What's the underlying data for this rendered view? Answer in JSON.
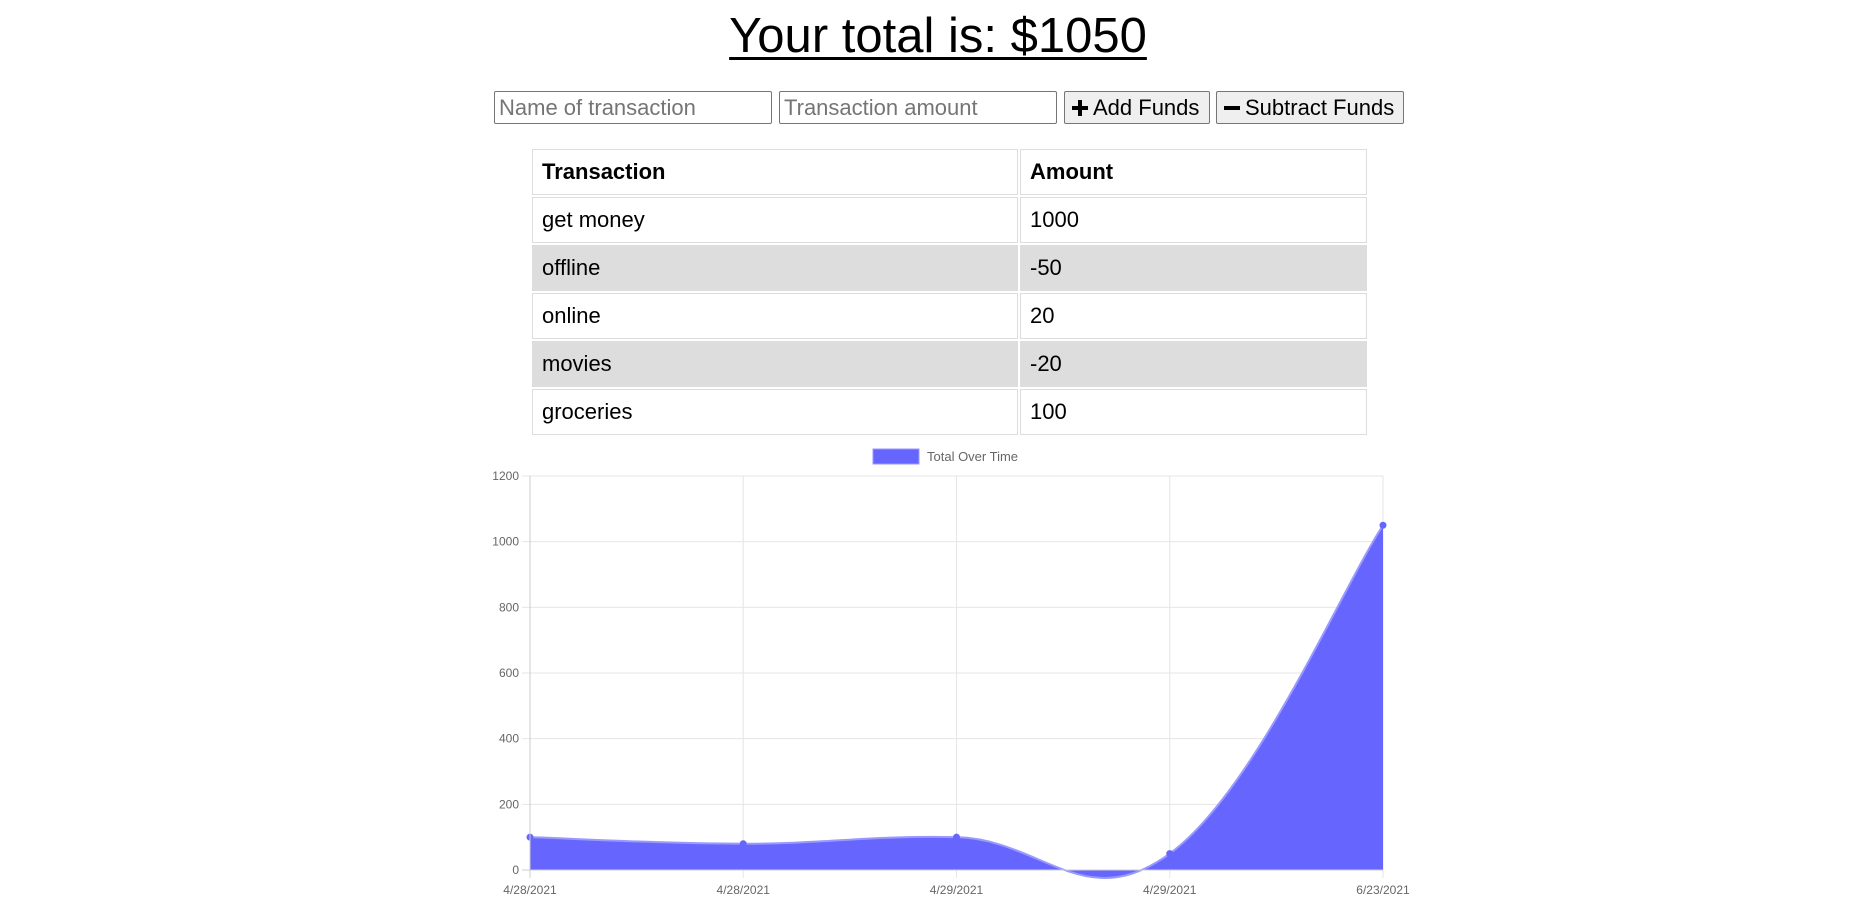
{
  "header": {
    "total_text": "Your total is: $1050"
  },
  "form": {
    "name_placeholder": "Name of transaction",
    "amount_placeholder": "Transaction amount",
    "add_label": "Add Funds",
    "subtract_label": "Subtract Funds"
  },
  "table": {
    "headers": [
      "Transaction",
      "Amount"
    ],
    "rows": [
      {
        "name": "get money",
        "amount": "1000"
      },
      {
        "name": "offline",
        "amount": "-50"
      },
      {
        "name": "online",
        "amount": "20"
      },
      {
        "name": "movies",
        "amount": "-20"
      },
      {
        "name": "groceries",
        "amount": "100"
      }
    ]
  },
  "chart_data": {
    "type": "area",
    "x": [
      "4/28/2021",
      "4/28/2021",
      "4/29/2021",
      "4/29/2021",
      "6/23/2021"
    ],
    "series": [
      {
        "name": "Total Over Time",
        "values": [
          100,
          80,
          100,
          50,
          1050
        ],
        "color": "#6666ff"
      }
    ],
    "yticks": [
      "0",
      "200",
      "400",
      "600",
      "800",
      "1000",
      "1200"
    ],
    "ylim": [
      0,
      1200
    ],
    "grid": true,
    "legend": "top"
  }
}
